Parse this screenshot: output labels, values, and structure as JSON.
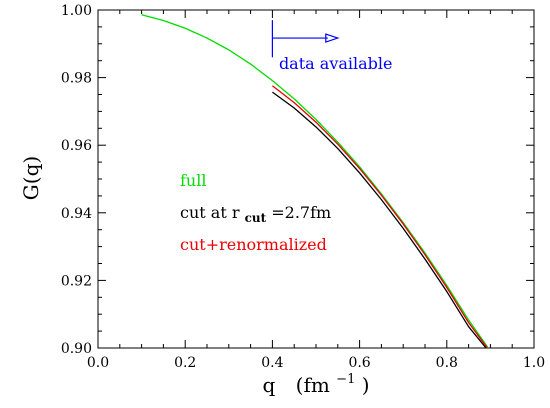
{
  "chart_data": {
    "type": "line",
    "xlabel_main": "q",
    "xlabel_unit_base": "(fm",
    "xlabel_unit_exp": "−1",
    "xlabel_unit_close": ")",
    "ylabel": "G(q)",
    "xlim": [
      0.0,
      1.0
    ],
    "ylim": [
      0.9,
      1.0
    ],
    "x_ticks": [
      0.0,
      0.2,
      0.4,
      0.6,
      0.8,
      1.0
    ],
    "x_tick_labels": [
      "0.0",
      "0.2",
      "0.4",
      "0.6",
      "0.8",
      "1.0"
    ],
    "y_ticks": [
      0.9,
      0.92,
      0.94,
      0.96,
      0.98,
      1.0
    ],
    "y_tick_labels": [
      "0.90",
      "0.92",
      "0.94",
      "0.96",
      "0.98",
      "1.00"
    ],
    "grid": false,
    "series": [
      {
        "name": "full",
        "color": "#00dd00",
        "x": [
          0.1,
          0.15,
          0.2,
          0.25,
          0.3,
          0.35,
          0.4,
          0.45,
          0.5,
          0.55,
          0.6,
          0.65,
          0.7,
          0.75,
          0.8,
          0.85,
          0.895
        ],
        "y": [
          0.9986,
          0.9969,
          0.9946,
          0.9917,
          0.9882,
          0.984,
          0.9791,
          0.9737,
          0.9676,
          0.9609,
          0.9536,
          0.9456,
          0.9371,
          0.9281,
          0.9185,
          0.9083,
          0.9
        ]
      },
      {
        "name_prefix": "cut at r",
        "name_sub": "cut",
        "name_suffix": "=2.7fm",
        "color": "#000000",
        "x": [
          0.4,
          0.45,
          0.5,
          0.55,
          0.6,
          0.65,
          0.7,
          0.75,
          0.8,
          0.85,
          0.89
        ],
        "y": [
          0.9757,
          0.971,
          0.9654,
          0.959,
          0.9518,
          0.9439,
          0.9354,
          0.9263,
          0.9167,
          0.9063,
          0.9
        ]
      },
      {
        "name": "cut+renormalized",
        "color": "#ee0000",
        "x": [
          0.4,
          0.45,
          0.5,
          0.55,
          0.6,
          0.65,
          0.7,
          0.75,
          0.8,
          0.85,
          0.893
        ],
        "y": [
          0.9776,
          0.9726,
          0.9668,
          0.9603,
          0.9531,
          0.9452,
          0.9367,
          0.9276,
          0.9179,
          0.9075,
          0.9
        ]
      }
    ],
    "annotation": {
      "text": "data available",
      "color": "#0000ff",
      "marker_x": 0.4,
      "arrow_from_x": 0.4,
      "arrow_to_x": 0.55,
      "arrow_y": 0.9917,
      "marker_y_range": [
        0.986,
        0.997
      ],
      "text_x": 0.415,
      "text_y": 0.9825
    },
    "legend": {
      "placement": "left-middle"
    }
  }
}
